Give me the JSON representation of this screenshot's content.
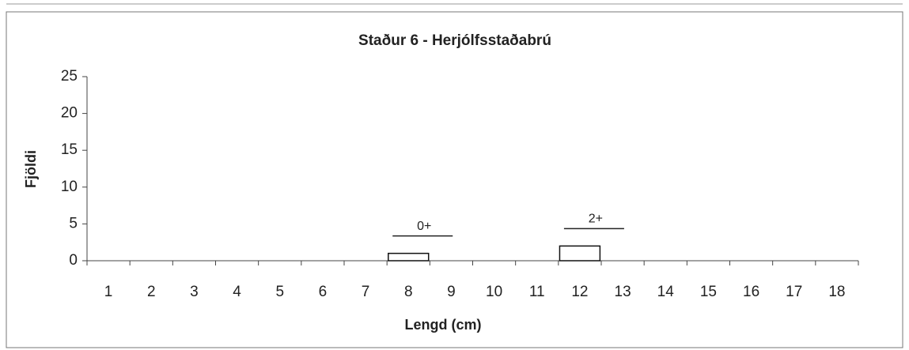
{
  "chart_data": {
    "type": "bar",
    "title": "Staður 6 - Herjólfsstaðabrú",
    "x_label": "Lengd (cm)",
    "y_label": "Fjöldi",
    "categories": [
      "1",
      "2",
      "3",
      "4",
      "5",
      "6",
      "7",
      "8",
      "9",
      "10",
      "11",
      "12",
      "13",
      "14",
      "15",
      "16",
      "17",
      "18"
    ],
    "values": [
      0,
      0,
      0,
      0,
      0,
      0,
      0,
      1,
      0,
      0,
      0,
      2,
      0,
      0,
      0,
      0,
      0,
      0
    ],
    "color": "#ffffff",
    "ylim": [
      0,
      25
    ],
    "yticks": [
      0,
      5,
      10,
      15,
      20,
      25
    ],
    "annotations": [
      {
        "text": "0+",
        "category": "8"
      },
      {
        "text": "2+",
        "category": "12"
      }
    ]
  }
}
